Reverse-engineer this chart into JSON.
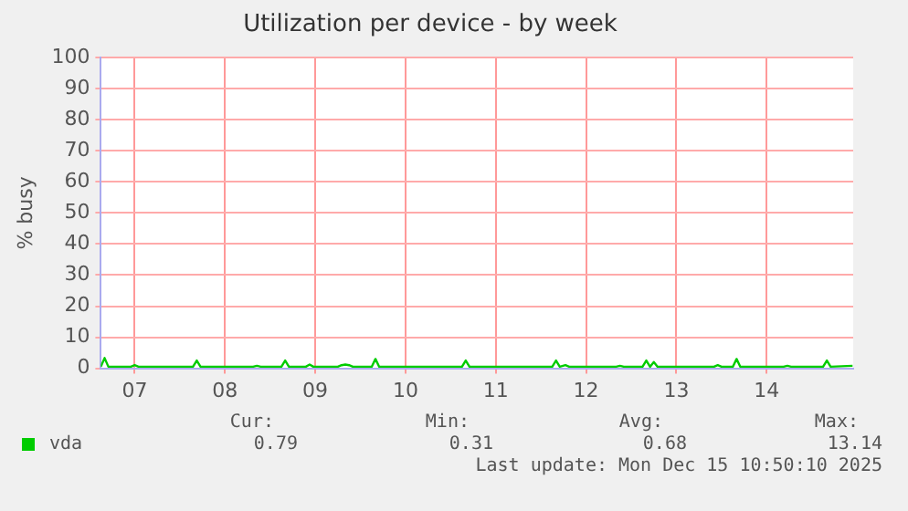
{
  "chart_data": {
    "type": "line",
    "title": "Utilization per device - by week",
    "ylabel": "% busy",
    "x": [
      "2025-12-07T03:00",
      "2025-12-07T04:00",
      "2025-12-07T05:00",
      "2025-12-07T11:00",
      "2025-12-07T12:00",
      "2025-12-07T13:00",
      "2025-12-08T03:30",
      "2025-12-08T04:30",
      "2025-12-08T05:30",
      "2025-12-08T19:30",
      "2025-12-08T20:30",
      "2025-12-08T21:30",
      "2025-12-09T03:00",
      "2025-12-09T04:00",
      "2025-12-09T05:00",
      "2025-12-09T09:30",
      "2025-12-09T10:30",
      "2025-12-09T11:30",
      "2025-12-09T18:00",
      "2025-12-09T19:00",
      "2025-12-09T20:00",
      "2025-12-09T21:00",
      "2025-12-09T22:00",
      "2025-12-10T03:00",
      "2025-12-10T04:00",
      "2025-12-10T05:00",
      "2025-12-11T03:00",
      "2025-12-11T04:00",
      "2025-12-11T05:00",
      "2025-12-12T03:00",
      "2025-12-12T04:00",
      "2025-12-12T05:00",
      "2025-12-12T06:30",
      "2025-12-12T07:30",
      "2025-12-12T20:00",
      "2025-12-12T21:00",
      "2025-12-12T22:00",
      "2025-12-13T03:00",
      "2025-12-13T04:00",
      "2025-12-13T05:00",
      "2025-12-13T06:00",
      "2025-12-13T07:00",
      "2025-12-13T22:00",
      "2025-12-13T23:00",
      "2025-12-14T00:00",
      "2025-12-14T03:00",
      "2025-12-14T04:00",
      "2025-12-14T05:00",
      "2025-12-14T16:30",
      "2025-12-14T17:30",
      "2025-12-14T18:30",
      "2025-12-15T03:00",
      "2025-12-15T04:00",
      "2025-12-15T05:00",
      "2025-12-15T10:50"
    ],
    "series": [
      {
        "name": "vda",
        "color": "#00cc00",
        "values": [
          0.5,
          3.3,
          0.5,
          0.5,
          1,
          0.5,
          0.5,
          2.5,
          0.5,
          0.5,
          0.8,
          0.5,
          0.5,
          2.5,
          0.5,
          0.5,
          1.2,
          0.5,
          0.5,
          1,
          1.2,
          1,
          0.5,
          0.5,
          3,
          0.5,
          0.5,
          2.5,
          0.5,
          0.5,
          2.5,
          0.5,
          1,
          0.5,
          0.5,
          0.8,
          0.5,
          0.5,
          2.5,
          0.5,
          2,
          0.5,
          0.5,
          1,
          0.5,
          0.5,
          3,
          0.5,
          0.5,
          0.8,
          0.5,
          0.5,
          2.5,
          0.5,
          0.8
        ]
      }
    ],
    "xlim": [
      "2025-12-07T03:00",
      "2025-12-15T11:00"
    ],
    "xticks": [
      {
        "value": "2025-12-07T12:00",
        "label": "07"
      },
      {
        "value": "2025-12-08T12:00",
        "label": "08"
      },
      {
        "value": "2025-12-09T12:00",
        "label": "09"
      },
      {
        "value": "2025-12-10T12:00",
        "label": "10"
      },
      {
        "value": "2025-12-11T12:00",
        "label": "11"
      },
      {
        "value": "2025-12-12T12:00",
        "label": "12"
      },
      {
        "value": "2025-12-13T12:00",
        "label": "13"
      },
      {
        "value": "2025-12-14T12:00",
        "label": "14"
      }
    ],
    "ylim": [
      0,
      100
    ],
    "yticks": [
      0,
      10,
      20,
      30,
      40,
      50,
      60,
      70,
      80,
      90,
      100
    ],
    "grid": true,
    "legend": "bottom left",
    "marker": "none",
    "line_style": "solid",
    "annotations": [
      "Cur:",
      "Min:",
      "Avg:",
      "Max:",
      "0.79",
      "0.31",
      "0.68",
      "13.14",
      "Last update: Mon Dec 15 10:50:10 2025"
    ]
  }
}
